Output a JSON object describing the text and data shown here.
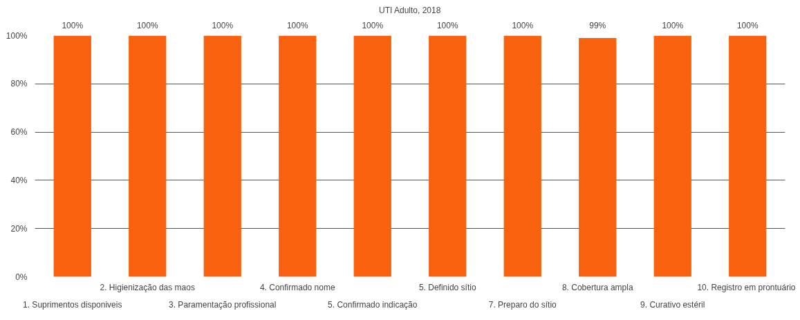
{
  "chart_data": {
    "type": "bar",
    "title": "UTI Adulto, 2018",
    "categories": [
      "1. Suprimentos disponiveis",
      "2. Higienização das maos",
      "3. Paramentação profissional",
      "4. Confirmado nome",
      "5. Confirmado indicação",
      "5. Definido sítio",
      "7. Preparo do sítio",
      "8. Cobertura ampla",
      "9. Curativo estéril",
      "10. Registro em prontuário"
    ],
    "values": [
      100,
      100,
      100,
      100,
      100,
      100,
      100,
      99,
      100,
      100
    ],
    "value_labels": [
      "100%",
      "100%",
      "100%",
      "100%",
      "100%",
      "100%",
      "100%",
      "99%",
      "100%",
      "100%"
    ],
    "color": "#f8620f",
    "ylim": [
      0,
      100
    ],
    "yticks": [
      {
        "value": 0,
        "label": "0%"
      },
      {
        "value": 20,
        "label": "20%"
      },
      {
        "value": 40,
        "label": "40%"
      },
      {
        "value": 60,
        "label": "60%"
      },
      {
        "value": 80,
        "label": "80%"
      },
      {
        "value": 100,
        "label": "100%"
      }
    ],
    "grid": "y"
  }
}
